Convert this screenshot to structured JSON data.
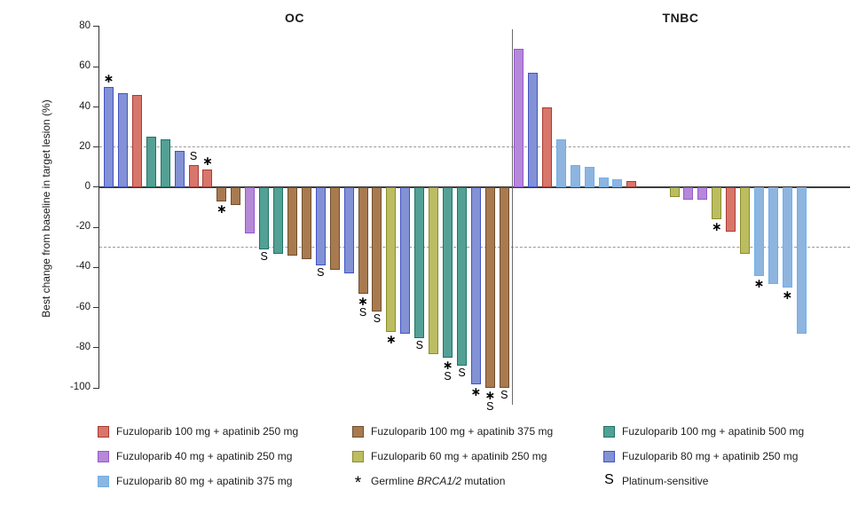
{
  "chart_data": {
    "type": "bar",
    "subtype": "waterfall",
    "title": "",
    "ylabel": "Best change from baseline in target lesion (%)",
    "ylim": [
      -100,
      80
    ],
    "yticks": [
      80,
      60,
      40,
      20,
      0,
      -20,
      -40,
      -60,
      -80,
      -100
    ],
    "reference_lines": {
      "values": [
        20,
        -30
      ],
      "style": "dashed"
    },
    "grid": "off",
    "legend_position": "bottom",
    "marker_meanings": {
      "*": "Germline BRCA1/2 mutation",
      "S": "Platinum-sensitive"
    },
    "series_colors": {
      "red": {
        "label": "Fuzuloparib 100 mg + apatinib 250 mg",
        "fill": "#d9766b",
        "edge": "#a83c34"
      },
      "brown": {
        "label": "Fuzuloparib 100 mg + apatinib 375 mg",
        "fill": "#a97a50",
        "edge": "#6f4f2d"
      },
      "teal": {
        "label": "Fuzuloparib 100 mg + apatinib 500 mg",
        "fill": "#53a095",
        "edge": "#1f7468"
      },
      "purple": {
        "label": "Fuzuloparib 40 mg + apatinib 250 mg",
        "fill": "#b688d8",
        "edge": "#9757cf"
      },
      "olive": {
        "label": "Fuzuloparib 60 mg + apatinib 250 mg",
        "fill": "#bcbd60",
        "edge": "#8a8c2e"
      },
      "blue": {
        "label": "Fuzuloparib 80 mg + apatinib 250 mg",
        "fill": "#8292d4",
        "edge": "#4353c3"
      },
      "sky": {
        "label": "Fuzuloparib 80 mg + apatinib 375 mg",
        "fill": "#8db5e0",
        "edge": "#72aeea"
      }
    },
    "panels": [
      {
        "name": "OC",
        "bars": [
          {
            "v": 50,
            "c": "blue",
            "m": "*"
          },
          {
            "v": 47,
            "c": "blue"
          },
          {
            "v": 46,
            "c": "red"
          },
          {
            "v": 25,
            "c": "teal"
          },
          {
            "v": 24,
            "c": "teal"
          },
          {
            "v": 18,
            "c": "blue"
          },
          {
            "v": 11,
            "c": "red",
            "m": "S"
          },
          {
            "v": 9,
            "c": "red",
            "m": "*"
          },
          {
            "v": -7,
            "c": "brown",
            "m": "*"
          },
          {
            "v": -9,
            "c": "brown"
          },
          {
            "v": -23,
            "c": "purple"
          },
          {
            "v": -31,
            "c": "teal",
            "m": "S"
          },
          {
            "v": -33,
            "c": "teal"
          },
          {
            "v": -34,
            "c": "brown"
          },
          {
            "v": -36,
            "c": "brown"
          },
          {
            "v": -39,
            "c": "blue",
            "m": "S"
          },
          {
            "v": -41,
            "c": "brown"
          },
          {
            "v": -43,
            "c": "blue"
          },
          {
            "v": -53,
            "c": "brown",
            "m": "*S"
          },
          {
            "v": -62,
            "c": "brown",
            "m": "S"
          },
          {
            "v": -72,
            "c": "olive",
            "m": "*"
          },
          {
            "v": -73,
            "c": "blue"
          },
          {
            "v": -75,
            "c": "teal",
            "m": "S"
          },
          {
            "v": -83,
            "c": "olive"
          },
          {
            "v": -85,
            "c": "teal",
            "m": "*S"
          },
          {
            "v": -89,
            "c": "teal",
            "m": "S"
          },
          {
            "v": -98,
            "c": "blue",
            "m": "*"
          },
          {
            "v": -100,
            "c": "brown",
            "m": "*S"
          },
          {
            "v": -100,
            "c": "brown",
            "m": "S"
          }
        ]
      },
      {
        "name": "TNBC",
        "bars": [
          {
            "v": 69,
            "c": "purple"
          },
          {
            "v": 57,
            "c": "blue"
          },
          {
            "v": 40,
            "c": "red"
          },
          {
            "v": 24,
            "c": "sky"
          },
          {
            "v": 11,
            "c": "sky"
          },
          {
            "v": 10,
            "c": "sky"
          },
          {
            "v": 5,
            "c": "sky"
          },
          {
            "v": 4,
            "c": "sky"
          },
          {
            "v": 3,
            "c": "red"
          },
          {
            "v": -5,
            "c": "olive"
          },
          {
            "v": -6,
            "c": "purple"
          },
          {
            "v": -6,
            "c": "purple"
          },
          {
            "v": -16,
            "c": "olive",
            "m": "*"
          },
          {
            "v": -22,
            "c": "red"
          },
          {
            "v": -33,
            "c": "olive"
          },
          {
            "v": -44,
            "c": "sky",
            "m": "*"
          },
          {
            "v": -48,
            "c": "sky"
          },
          {
            "v": -50,
            "c": "sky",
            "m": "*"
          },
          {
            "v": -73,
            "c": "sky"
          }
        ]
      }
    ]
  },
  "legend": {
    "columns": [
      {
        "items": [
          {
            "type": "swatch",
            "color": "red",
            "label": "Fuzuloparib 100 mg + apatinib 250 mg"
          },
          {
            "type": "swatch",
            "color": "purple",
            "label": "Fuzuloparib 40 mg + apatinib 250 mg"
          },
          {
            "type": "swatch",
            "color": "sky",
            "label": "Fuzuloparib 80 mg + apatinib 375 mg"
          }
        ]
      },
      {
        "items": [
          {
            "type": "swatch",
            "color": "brown",
            "label": "Fuzuloparib 100 mg + apatinib 375 mg"
          },
          {
            "type": "swatch",
            "color": "olive",
            "label": "Fuzuloparib 60 mg + apatinib 250 mg"
          },
          {
            "type": "symbol",
            "symbol": "*",
            "label_prefix": "Germline ",
            "label_italic": "BRCA1/2",
            "label_suffix": " mutation"
          }
        ]
      },
      {
        "items": [
          {
            "type": "swatch",
            "color": "teal",
            "label": "Fuzuloparib 100 mg + apatinib 500 mg"
          },
          {
            "type": "swatch",
            "color": "blue",
            "label": "Fuzuloparib 80 mg + apatinib 250 mg"
          },
          {
            "type": "symbol",
            "symbol": "S",
            "label": "Platinum-sensitive"
          }
        ]
      }
    ]
  }
}
